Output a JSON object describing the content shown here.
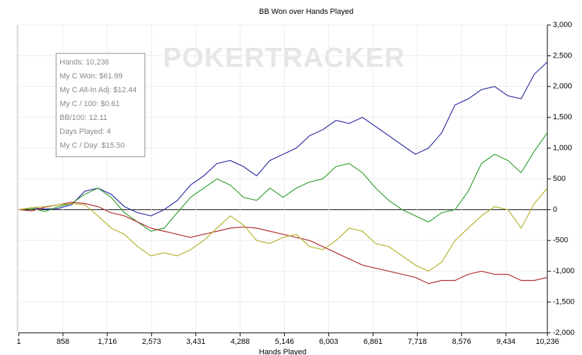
{
  "chart_data": {
    "type": "line",
    "title": "BB Won over Hands Played",
    "xlabel": "Hands Played",
    "watermark": "POKERTRACKER",
    "stats": [
      "Hands: 10,236",
      "My C Won: $61.99",
      "My C All-In Adj: $12.44",
      "My C / 100: $0.61",
      "BB/100: 12.11",
      "Days Played: 4",
      "My C / Day: $15.50"
    ],
    "grid": true,
    "x": [
      1,
      256,
      512,
      768,
      1024,
      1280,
      1536,
      1792,
      2048,
      2304,
      2560,
      2816,
      3072,
      3328,
      3584,
      3840,
      4096,
      4352,
      4608,
      4864,
      5120,
      5376,
      5632,
      5888,
      6144,
      6400,
      6656,
      6912,
      7168,
      7424,
      7680,
      7936,
      8192,
      8448,
      8704,
      8960,
      9216,
      9472,
      9728,
      9984,
      10236
    ],
    "series": [
      {
        "color": "#2a2aa0",
        "values": [
          0,
          30,
          10,
          20,
          80,
          300,
          350,
          250,
          50,
          -50,
          -100,
          0,
          150,
          400,
          550,
          750,
          800,
          700,
          550,
          800,
          900,
          1000,
          1200,
          1300,
          1450,
          1400,
          1500,
          1350,
          1200,
          1050,
          900,
          1000,
          1250,
          1700,
          1800,
          1950,
          2000,
          1850,
          1800,
          2200,
          2400
        ]
      },
      {
        "color": "#30a030",
        "values": [
          0,
          20,
          -30,
          50,
          100,
          250,
          350,
          200,
          -50,
          -200,
          -350,
          -300,
          -50,
          200,
          350,
          500,
          400,
          200,
          150,
          350,
          200,
          350,
          450,
          500,
          700,
          750,
          600,
          350,
          150,
          0,
          -100,
          -200,
          -50,
          0,
          300,
          750,
          900,
          800,
          600,
          950,
          1250
        ]
      },
      {
        "color": "#b02828",
        "values": [
          0,
          -20,
          40,
          80,
          120,
          100,
          50,
          -50,
          -100,
          -200,
          -300,
          -350,
          -400,
          -450,
          -400,
          -350,
          -300,
          -280,
          -300,
          -350,
          -400,
          -450,
          -500,
          -600,
          -700,
          -800,
          -900,
          -950,
          -1000,
          -1050,
          -1100,
          -1200,
          -1150,
          -1150,
          -1050,
          -1000,
          -1050,
          -1050,
          -1150,
          -1150,
          -1100
        ]
      },
      {
        "color": "#b5b02a",
        "values": [
          0,
          30,
          50,
          80,
          100,
          80,
          -100,
          -300,
          -400,
          -600,
          -750,
          -700,
          -750,
          -650,
          -500,
          -300,
          -100,
          -250,
          -500,
          -550,
          -450,
          -400,
          -600,
          -650,
          -500,
          -300,
          -350,
          -550,
          -600,
          -750,
          -900,
          -1000,
          -850,
          -500,
          -300,
          -100,
          50,
          0,
          -300,
          100,
          350
        ]
      }
    ],
    "xlim": [
      1,
      10236
    ],
    "xticks": [
      1,
      {
        "value": 858,
        "label": "858"
      },
      {
        "value": 1716,
        "label": "1,716"
      },
      {
        "value": 2573,
        "label": "2,573"
      },
      {
        "value": 3431,
        "label": "3,431"
      },
      {
        "value": 4288,
        "label": "4,288"
      },
      {
        "value": 5146,
        "label": "5,146"
      },
      {
        "value": 6003,
        "label": "6,003"
      },
      {
        "value": 6861,
        "label": "6,861"
      },
      {
        "value": 7718,
        "label": "7,718"
      },
      {
        "value": 8576,
        "label": "8,576"
      },
      {
        "value": 9434,
        "label": "9,434"
      },
      {
        "value": 10236,
        "label": "10,236"
      }
    ],
    "ylim": [
      -2000,
      3000
    ],
    "yticks": [
      {
        "value": -2000,
        "label": "-2,000"
      },
      {
        "value": -1500,
        "label": "-1,500"
      },
      {
        "value": -1000,
        "label": "-1,000"
      },
      -500,
      0,
      500,
      {
        "value": 1000,
        "label": "1,000"
      },
      {
        "value": 1500,
        "label": "1,500"
      },
      {
        "value": 2000,
        "label": "2,000"
      },
      {
        "value": 2500,
        "label": "2,500"
      },
      {
        "value": 3000,
        "label": "3,000"
      }
    ]
  }
}
